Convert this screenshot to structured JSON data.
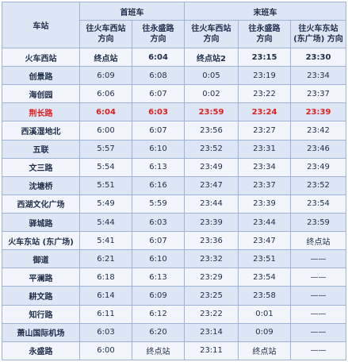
{
  "header": {
    "station": "车站",
    "first_train": "首班车",
    "last_train": "末班车",
    "dirs": [
      {
        "line1": "往火车西站",
        "line2": "方向"
      },
      {
        "line1": "往永盛路",
        "line2": "方向"
      },
      {
        "line1": "往火车西站",
        "line2": "方向"
      },
      {
        "line1": "往永盛路",
        "line2": "方向"
      },
      {
        "line1": "往火车东站",
        "line2": "(东广场) 方向"
      }
    ]
  },
  "rows": [
    {
      "station": "火车西站",
      "c": [
        "终点站",
        "6:04",
        "终点站2",
        "23:15",
        "23:30"
      ]
    },
    {
      "station": "创景路",
      "c": [
        "6:09",
        "6:08",
        "0:05",
        "23:19",
        "23:34"
      ]
    },
    {
      "station": "海创园",
      "c": [
        "6:06",
        "6:07",
        "0:02",
        "23:22",
        "23:37"
      ]
    },
    {
      "station": "荆长路",
      "c": [
        "6:04",
        "6:03",
        "23:59",
        "23:24",
        "23:39"
      ],
      "highlight": true
    },
    {
      "station": "西溪湿地北",
      "c": [
        "6:00",
        "6:07",
        "23:56",
        "23:27",
        "23:42"
      ]
    },
    {
      "station": "五联",
      "c": [
        "5:57",
        "6:10",
        "23:52",
        "23:31",
        "23:46"
      ]
    },
    {
      "station": "文三路",
      "c": [
        "5:54",
        "6:13",
        "23:49",
        "23:34",
        "23:49"
      ]
    },
    {
      "station": "沈塘桥",
      "c": [
        "5:51",
        "6:16",
        "23:47",
        "23:37",
        "23:52"
      ]
    },
    {
      "station": "西湖文化广场",
      "c": [
        "5:49",
        "5:59",
        "23:44",
        "23:39",
        "23:54"
      ]
    },
    {
      "station": "驿城路",
      "c": [
        "5:44",
        "6:03",
        "23:39",
        "23:44",
        "23:59"
      ]
    },
    {
      "station": "火车东站 (东广场)",
      "c": [
        "5:41",
        "6:07",
        "23:36",
        "23:47",
        "终点站"
      ]
    },
    {
      "station": "御道",
      "c": [
        "6:21",
        "6:10",
        "23:32",
        "23:51",
        "——"
      ]
    },
    {
      "station": "平澜路",
      "c": [
        "6:18",
        "6:13",
        "23:29",
        "23:54",
        "——"
      ]
    },
    {
      "station": "耕文路",
      "c": [
        "6:14",
        "6:09",
        "23:25",
        "23:58",
        "——"
      ]
    },
    {
      "station": "知行路",
      "c": [
        "6:11",
        "6:12",
        "23:22",
        "0:01",
        "——"
      ]
    },
    {
      "station": "萧山国际机场",
      "c": [
        "6:03",
        "6:20",
        "23:14",
        "0:09",
        "——"
      ]
    },
    {
      "station": "永盛路",
      "c": [
        "6:00",
        "终点站",
        "23:11",
        "终点站",
        "——"
      ]
    }
  ]
}
